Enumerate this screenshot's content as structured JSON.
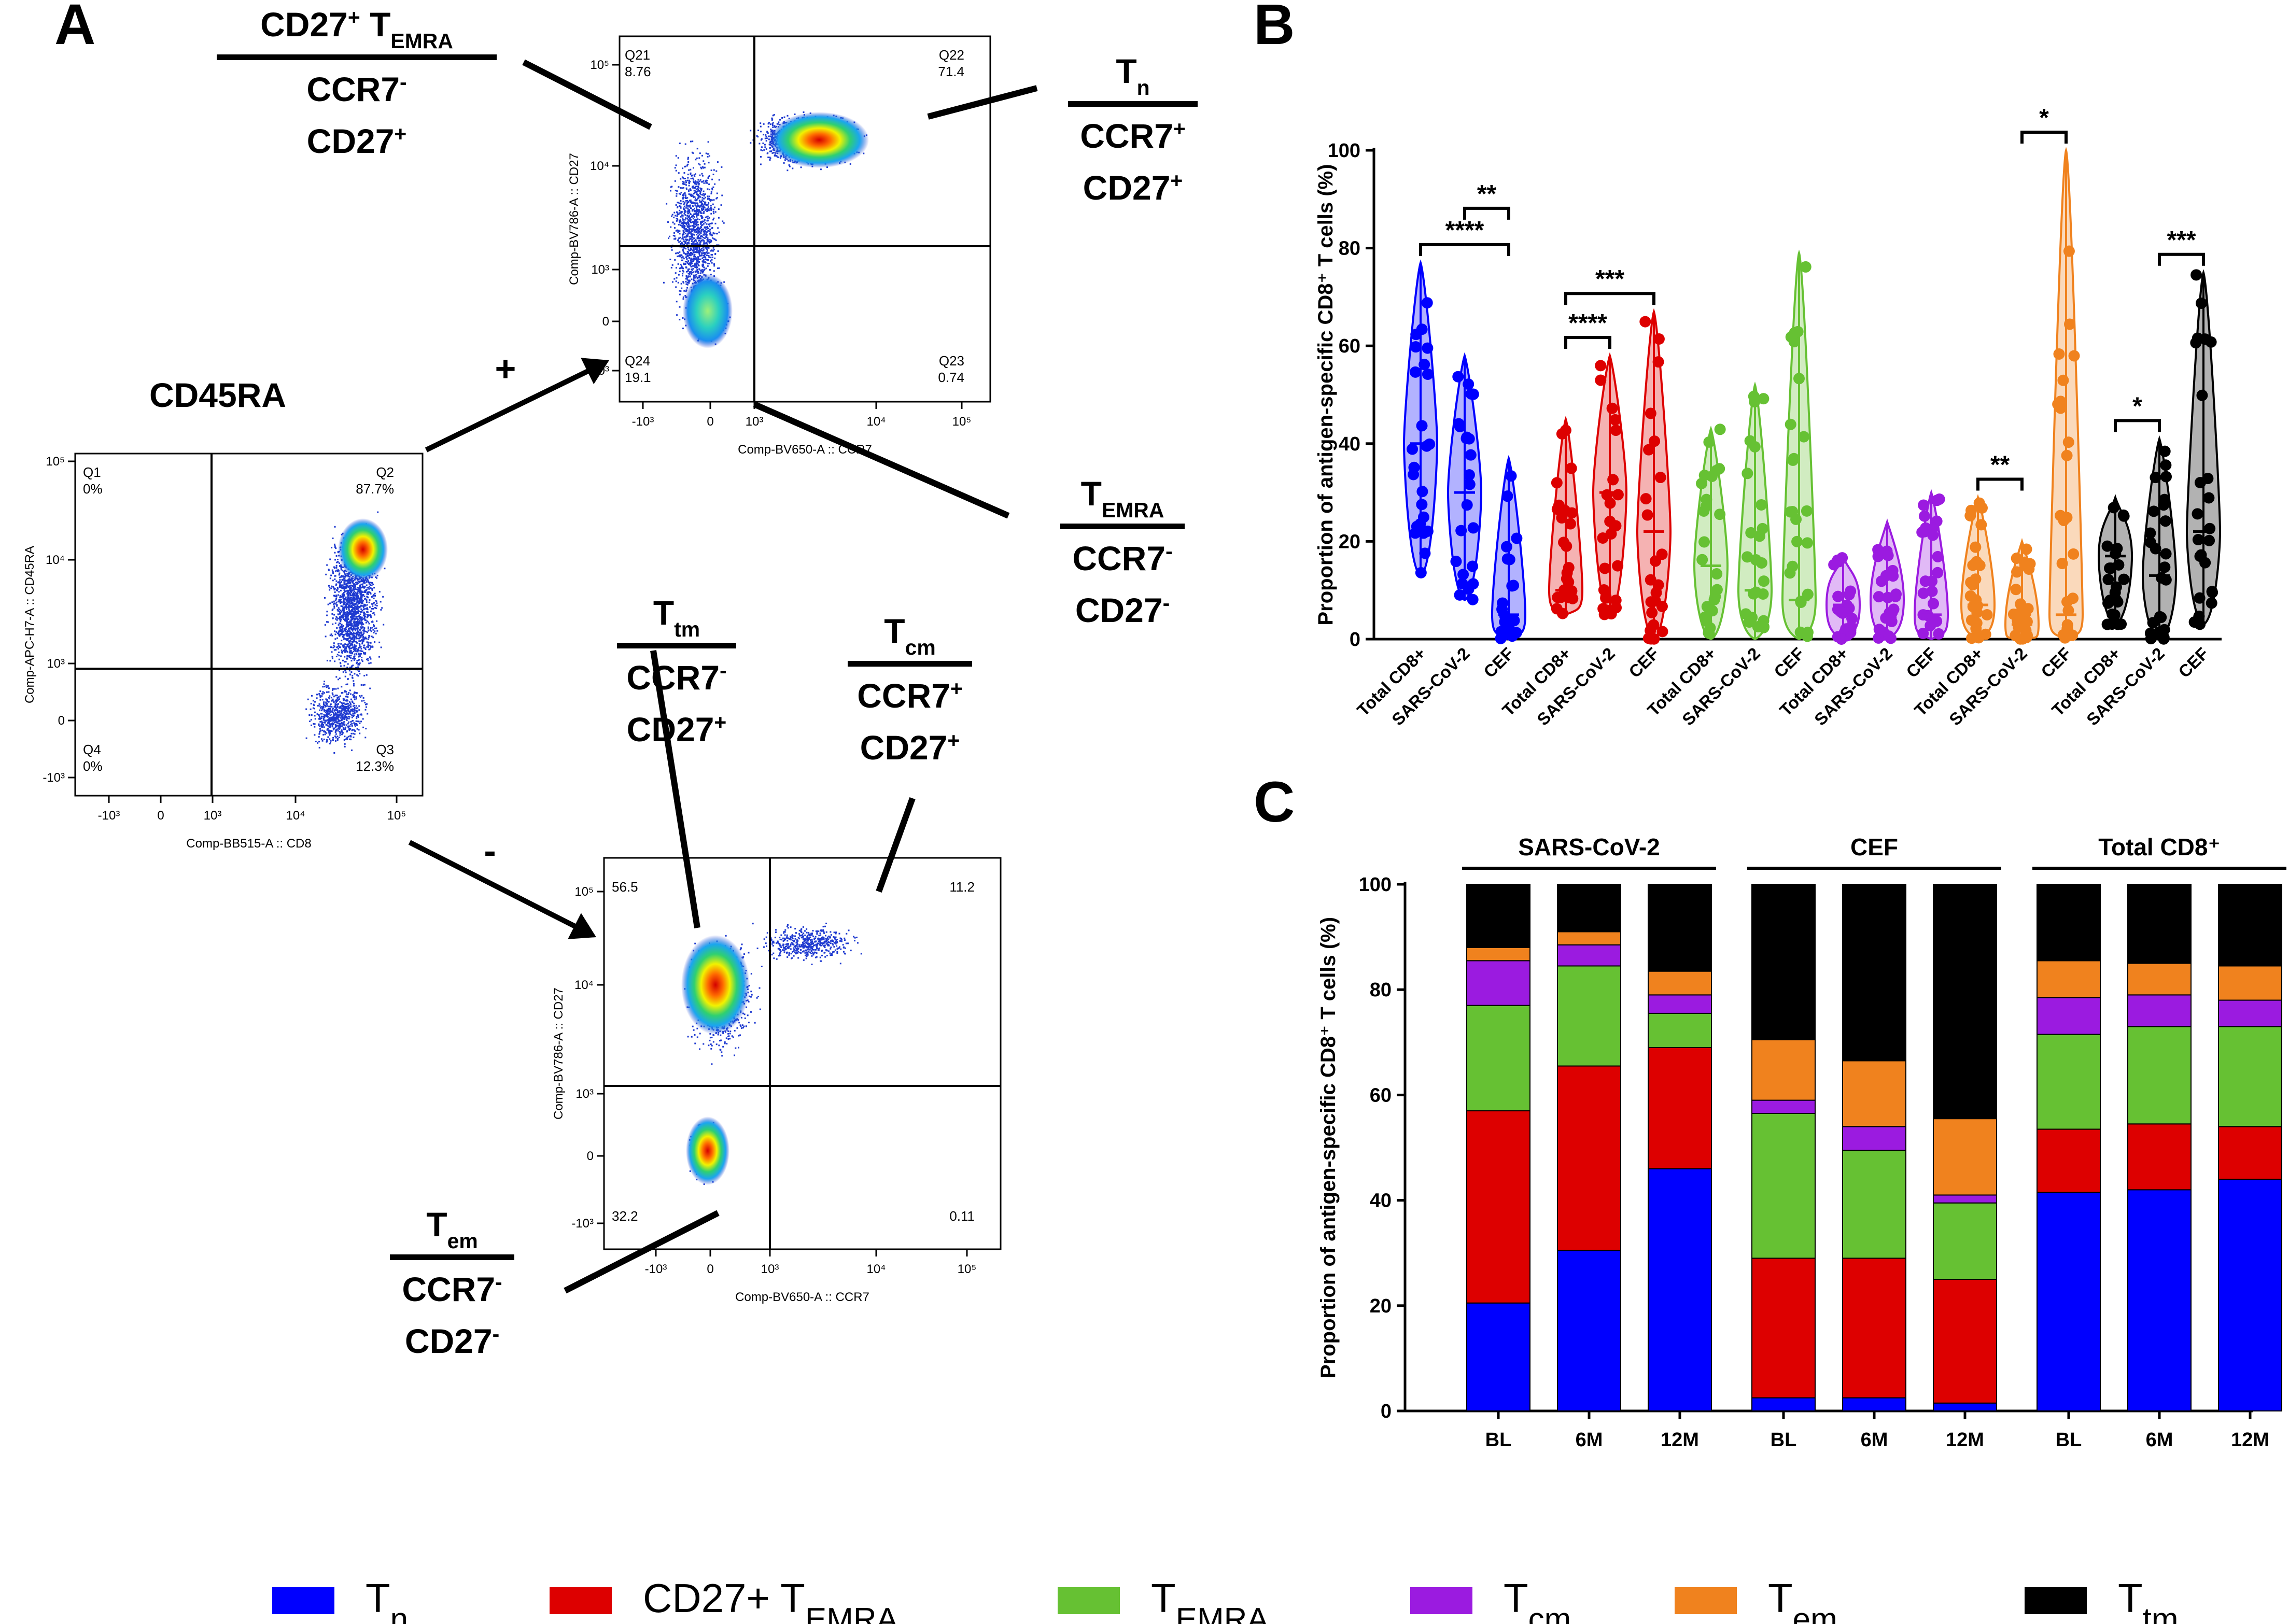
{
  "panel_labels": {
    "a": "A",
    "b": "B",
    "c": "C"
  },
  "colors": {
    "tn": "#0000ff",
    "cd27_temra": "#dd0000",
    "temra": "#66c133",
    "tcm": "#9b1be0",
    "tem": "#f0821e",
    "ttm": "#000000"
  },
  "panel_a": {
    "cd45ra_label": "CD45RA",
    "plus_label": "+",
    "minus_label": "-",
    "source_plot": {
      "x_axis": "Comp-BB515-A :: CD8",
      "y_axis": "Comp-APC-H7-A :: CD45RA",
      "gates": [
        {
          "name": "Q1",
          "value": "0%"
        },
        {
          "name": "Q2",
          "value": "87.7%"
        },
        {
          "name": "Q3",
          "value": "12.3%"
        },
        {
          "name": "Q4",
          "value": "0%"
        }
      ],
      "x_ticks": [
        "-10³",
        "0",
        "10³",
        "10⁴",
        "10⁵"
      ],
      "y_ticks": [
        "10⁵",
        "10⁴",
        "10³",
        "0",
        "-10³"
      ]
    },
    "positive_plot": {
      "x_axis": "Comp-BV650-A :: CCR7",
      "y_axis": "Comp-BV786-A :: CD27",
      "gates": [
        {
          "name": "Q21",
          "value": "8.76"
        },
        {
          "name": "Q22",
          "value": "71.4"
        },
        {
          "name": "Q23",
          "value": "0.74"
        },
        {
          "name": "Q24",
          "value": "19.1"
        }
      ],
      "x_ticks": [
        "-10³",
        "0",
        "10³",
        "10⁴",
        "10⁵"
      ],
      "y_ticks": [
        "10⁵",
        "10⁴",
        "10³",
        "0",
        "-10³"
      ]
    },
    "negative_plot": {
      "x_axis": "Comp-BV650-A :: CCR7",
      "y_axis": "Comp-BV786-A :: CD27",
      "gates": [
        {
          "name": "top-left",
          "value": "56.5"
        },
        {
          "name": "top-right",
          "value": "11.2"
        },
        {
          "name": "bottom-left",
          "value": "32.2"
        },
        {
          "name": "bottom-right",
          "value": "0.11"
        }
      ],
      "x_ticks": [
        "-10³",
        "0",
        "10³",
        "10⁴",
        "10⁵"
      ],
      "y_ticks": [
        "10⁵",
        "10⁴",
        "10³",
        "0",
        "-10³"
      ]
    },
    "subset_labels": {
      "cd27_temra": {
        "pre": "CD27",
        "sup": "+",
        "main": " T",
        "sub": "EMRA",
        "l1": "CCR7",
        "l1sup": "-",
        "l2": "CD27",
        "l2sup": "+"
      },
      "tn": {
        "main": "T",
        "sub": "n",
        "l1": "CCR7",
        "l1sup": "+",
        "l2": "CD27",
        "l2sup": "+"
      },
      "temra": {
        "main": "T",
        "sub": "EMRA",
        "l1": "CCR7",
        "l1sup": "-",
        "l2": "CD27",
        "l2sup": "-"
      },
      "ttm": {
        "main": "T",
        "sub": "tm",
        "l1": "CCR7",
        "l1sup": "-",
        "l2": "CD27",
        "l2sup": "+"
      },
      "tcm": {
        "main": "T",
        "sub": "cm",
        "l1": "CCR7",
        "l1sup": "+",
        "l2": "CD27",
        "l2sup": "+"
      },
      "tem": {
        "main": "T",
        "sub": "em",
        "l1": "CCR7",
        "l1sup": "-",
        "l2": "CD27",
        "l2sup": "-"
      }
    }
  },
  "chart_data": [
    {
      "panel": "B",
      "type": "violin",
      "ylabel": "Proportion of antigen-specific CD8⁺ T cells (%)",
      "ylim": [
        0,
        100
      ],
      "yticks": [
        0,
        20,
        40,
        60,
        80,
        100
      ],
      "categories": [
        "Total CD8+",
        "SARS-CoV-2",
        "CEF"
      ],
      "groups": [
        {
          "subset": "Tn",
          "color_key": "tn",
          "medians": [
            40,
            30,
            5
          ],
          "ranges": [
            [
              13,
              77
            ],
            [
              8,
              58
            ],
            [
              0,
              37
            ]
          ]
        },
        {
          "subset": "CD27+ TEMRA",
          "color_key": "cd27_temra",
          "medians": [
            10,
            30,
            22
          ],
          "ranges": [
            [
              5,
              45
            ],
            [
              5,
              58
            ],
            [
              0,
              67
            ]
          ]
        },
        {
          "subset": "TEMRA",
          "color_key": "temra",
          "medians": [
            15,
            10,
            8
          ],
          "ranges": [
            [
              0,
              43
            ],
            [
              0,
              52
            ],
            [
              0,
              79
            ]
          ]
        },
        {
          "subset": "Tcm",
          "color_key": "tcm",
          "medians": [
            7,
            8,
            5
          ],
          "ranges": [
            [
              0,
              17
            ],
            [
              0,
              24
            ],
            [
              0,
              30
            ]
          ]
        },
        {
          "subset": "Tem",
          "color_key": "tem",
          "medians": [
            7,
            3,
            5
          ],
          "ranges": [
            [
              0,
              29
            ],
            [
              0,
              20
            ],
            [
              0,
              100
            ]
          ]
        },
        {
          "subset": "Ttm",
          "color_key": "ttm",
          "medians": [
            17,
            13,
            22
          ],
          "ranges": [
            [
              3,
              29
            ],
            [
              0,
              41
            ],
            [
              3,
              75
            ]
          ]
        }
      ],
      "significance": [
        {
          "group": 0,
          "from": 0,
          "to": 2,
          "label": "****"
        },
        {
          "group": 0,
          "from": 1,
          "to": 2,
          "label": "**"
        },
        {
          "group": 1,
          "from": 0,
          "to": 1,
          "label": "****"
        },
        {
          "group": 1,
          "from": 0,
          "to": 2,
          "label": "***"
        },
        {
          "group": 4,
          "from": 0,
          "to": 1,
          "label": "**"
        },
        {
          "group": 4,
          "from": 1,
          "to": 2,
          "label": "*"
        },
        {
          "group": 5,
          "from": 0,
          "to": 1,
          "label": "*"
        },
        {
          "group": 5,
          "from": 1,
          "to": 2,
          "label": "***"
        }
      ]
    },
    {
      "panel": "C",
      "type": "bar",
      "stacked": true,
      "ylabel": "Proportion of antigen-specific CD8⁺ T cells (%)",
      "ylim": [
        0,
        100
      ],
      "yticks": [
        0,
        20,
        40,
        60,
        80,
        100
      ],
      "group_labels": [
        "SARS-CoV-2",
        "CEF",
        "Total CD8⁺"
      ],
      "categories": [
        "BL",
        "6M",
        "12M",
        "BL",
        "6M",
        "12M",
        "BL",
        "6M",
        "12M"
      ],
      "series": [
        {
          "name": "Tn",
          "color_key": "tn",
          "values": [
            20.5,
            30.5,
            46,
            2.5,
            2.5,
            1.5,
            41.5,
            42,
            44
          ]
        },
        {
          "name": "CD27+ TEMRA",
          "color_key": "cd27_temra",
          "values": [
            36.5,
            35,
            23,
            26.5,
            26.5,
            23.5,
            12,
            12.5,
            10
          ]
        },
        {
          "name": "TEMRA",
          "color_key": "temra",
          "values": [
            20,
            19,
            6.5,
            27.5,
            20.5,
            14.5,
            18,
            18.5,
            19
          ]
        },
        {
          "name": "Tcm",
          "color_key": "tcm",
          "values": [
            8.5,
            4,
            3.5,
            2.5,
            4.5,
            1.5,
            7,
            6,
            5
          ]
        },
        {
          "name": "Tem",
          "color_key": "tem",
          "values": [
            2.5,
            2.5,
            4.5,
            11.5,
            12.5,
            14.5,
            7,
            6,
            6.5
          ]
        },
        {
          "name": "Ttm",
          "color_key": "ttm",
          "values": [
            12,
            9,
            16.5,
            29.5,
            33.5,
            44.5,
            14.5,
            15,
            15.5
          ]
        }
      ]
    }
  ],
  "legend": [
    {
      "main": "T",
      "sub": "n",
      "color_key": "tn"
    },
    {
      "main": "CD27+ T",
      "sub": "EMRA",
      "color_key": "cd27_temra"
    },
    {
      "main": "T",
      "sub": "EMRA",
      "color_key": "temra"
    },
    {
      "main": "T",
      "sub": "cm",
      "color_key": "tcm"
    },
    {
      "main": "T",
      "sub": "em",
      "color_key": "tem"
    },
    {
      "main": "T",
      "sub": "tm",
      "color_key": "ttm"
    }
  ]
}
